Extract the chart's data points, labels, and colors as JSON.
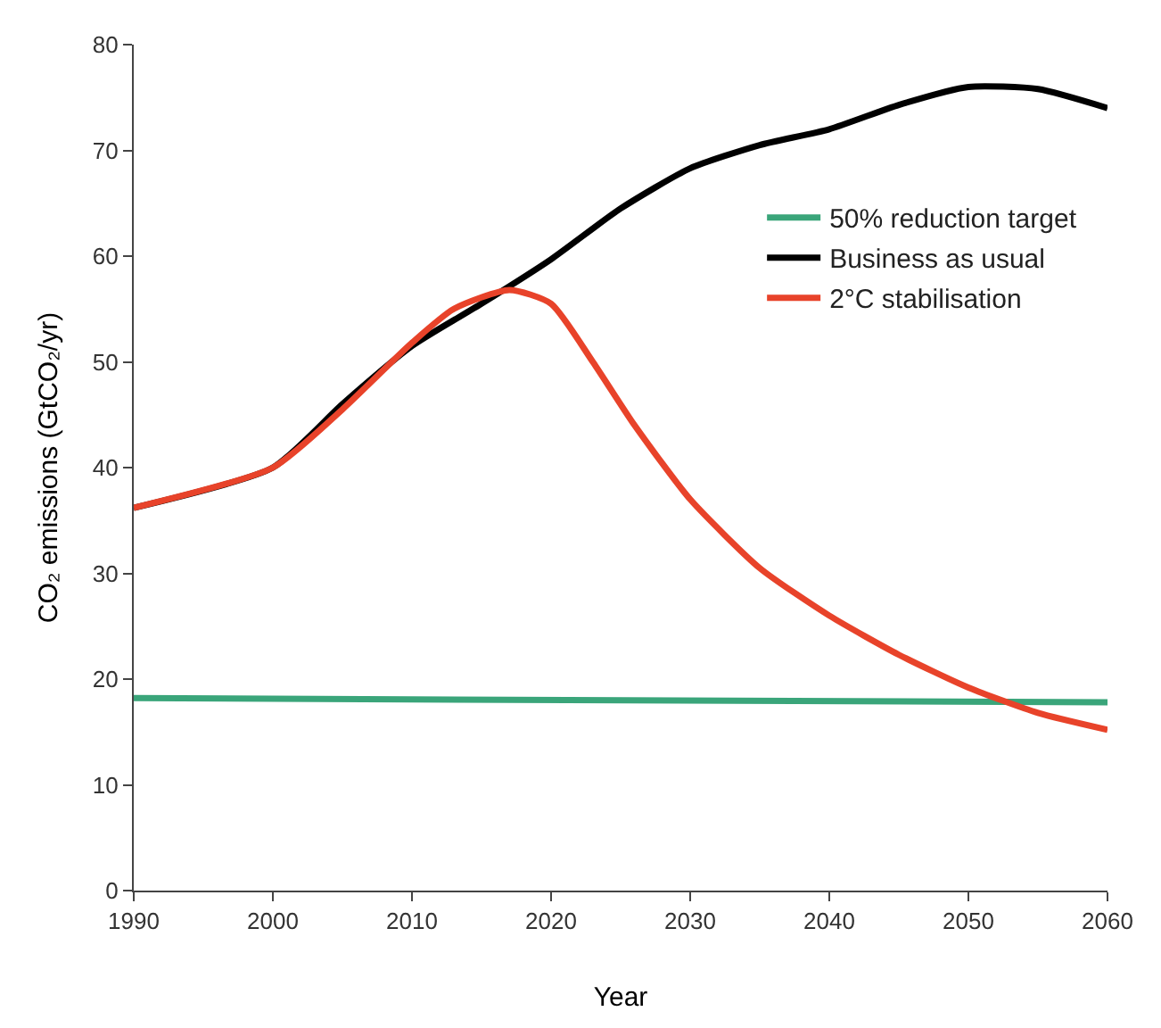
{
  "chart_data": {
    "type": "line",
    "xlabel": "Year",
    "ylabel": "CO₂ emissions (GtCO₂/yr)",
    "xlim": [
      1990,
      2060
    ],
    "xticks": [
      1990,
      2000,
      2010,
      2020,
      2030,
      2040,
      2050,
      2060
    ],
    "ylim": [
      0,
      80
    ],
    "yticks": [
      0,
      10,
      20,
      30,
      40,
      50,
      60,
      70,
      80
    ],
    "legend": "top right",
    "marker": "none",
    "line_style": "solid",
    "series": [
      {
        "name": "50% reduction target",
        "color": "#3aa57a",
        "x": [
          1990,
          2060
        ],
        "values": [
          18.2,
          17.8
        ]
      },
      {
        "name": "Business as usual",
        "color": "#000000",
        "x": [
          1990,
          2000,
          2005,
          2010,
          2015,
          2020,
          2025,
          2030,
          2035,
          2040,
          2045,
          2050,
          2055,
          2060
        ],
        "values": [
          36.2,
          40,
          46,
          51.5,
          55.5,
          59.7,
          64.5,
          68.3,
          70.5,
          72,
          74.3,
          76,
          75.8,
          74
        ]
      },
      {
        "name": "2°C stabilisation",
        "color": "#e8432a",
        "x": [
          1990,
          2000,
          2005,
          2010,
          2013,
          2017,
          2020,
          2023,
          2026,
          2030,
          2035,
          2040,
          2045,
          2050,
          2055,
          2060
        ],
        "values": [
          36.2,
          40,
          45.5,
          51.8,
          55,
          56.8,
          55.5,
          50,
          44,
          37,
          30.5,
          26,
          22.3,
          19.2,
          16.8,
          15.2
        ]
      }
    ]
  }
}
